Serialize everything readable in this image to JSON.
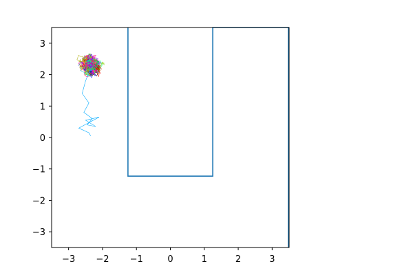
{
  "chart_data": {
    "type": "line",
    "title": "",
    "xlabel": "",
    "ylabel": "",
    "xlim": [
      -3.5,
      3.5
    ],
    "ylim": [
      -3.5,
      3.5
    ],
    "grid": false,
    "legend": "none",
    "x_ticks": [
      -3,
      -2,
      -1,
      0,
      1,
      2,
      3
    ],
    "y_ticks": [
      -3,
      -2,
      -1,
      0,
      1,
      2,
      3
    ],
    "x_tick_labels": [
      "−3",
      "−2",
      "−1",
      "0",
      "1",
      "2",
      "3"
    ],
    "y_tick_labels": [
      "−3",
      "−2",
      "−1",
      "0",
      "1",
      "2",
      "3"
    ],
    "boundary": {
      "color": "#1f77b4",
      "x": [
        -1.25,
        -1.25,
        1.25,
        1.25,
        3.48,
        3.48
      ],
      "y": [
        3.5,
        -1.23,
        -1.23,
        3.5,
        3.5,
        -3.5
      ]
    },
    "trajectories": {
      "count": 42,
      "center": [
        -2.35,
        2.3
      ],
      "spread": [
        0.2,
        0.22
      ],
      "colors": [
        "#ff0000",
        "#00aa00",
        "#0000ff",
        "#ff00ff",
        "#00cccc",
        "#aaaa00",
        "#ff8800",
        "#8800ff",
        "#00ff88",
        "#ff0088",
        "#888888",
        "#000000",
        "#4488ff",
        "#88cc00",
        "#cc4400",
        "#ffaaaa"
      ],
      "long_tail": {
        "x": [
          -2.35,
          -2.5,
          -2.6,
          -2.4,
          -2.55,
          -2.3,
          -2.45,
          -2.2,
          -2.5,
          -2.1,
          -2.7,
          -2.4,
          -2.35
        ],
        "y": [
          2.2,
          1.8,
          1.4,
          1.1,
          0.8,
          0.6,
          0.4,
          0.35,
          0.55,
          0.65,
          0.3,
          0.15,
          0.05
        ]
      }
    }
  }
}
